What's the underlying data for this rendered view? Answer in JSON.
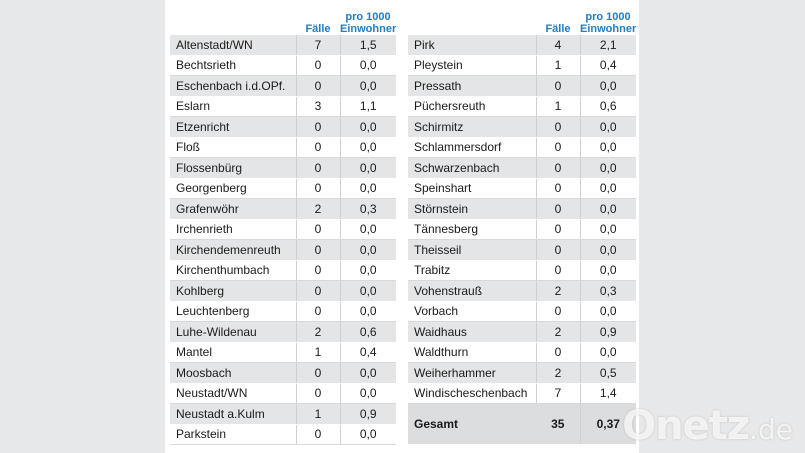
{
  "header": {
    "cases": "Fälle",
    "rate_line1": "pro 1000",
    "rate_line2": "Einwohner"
  },
  "left": [
    {
      "name": "Altenstadt/WN",
      "cases": "7",
      "rate": "1,5"
    },
    {
      "name": "Bechtsrieth",
      "cases": "0",
      "rate": "0,0"
    },
    {
      "name": "Eschenbach i.d.OPf.",
      "cases": "0",
      "rate": "0,0"
    },
    {
      "name": "Eslarn",
      "cases": "3",
      "rate": "1,1"
    },
    {
      "name": "Etzenricht",
      "cases": "0",
      "rate": "0,0"
    },
    {
      "name": "Floß",
      "cases": "0",
      "rate": "0,0"
    },
    {
      "name": "Flossenbürg",
      "cases": "0",
      "rate": "0,0"
    },
    {
      "name": "Georgenberg",
      "cases": "0",
      "rate": "0,0"
    },
    {
      "name": "Grafenwöhr",
      "cases": "2",
      "rate": "0,3"
    },
    {
      "name": "Irchenrieth",
      "cases": "0",
      "rate": "0,0"
    },
    {
      "name": "Kirchendemenreuth",
      "cases": "0",
      "rate": "0,0"
    },
    {
      "name": "Kirchenthumbach",
      "cases": "0",
      "rate": "0,0"
    },
    {
      "name": "Kohlberg",
      "cases": "0",
      "rate": "0,0"
    },
    {
      "name": "Leuchtenberg",
      "cases": "0",
      "rate": "0,0"
    },
    {
      "name": "Luhe-Wildenau",
      "cases": "2",
      "rate": "0,6"
    },
    {
      "name": "Mantel",
      "cases": "1",
      "rate": "0,4"
    },
    {
      "name": "Moosbach",
      "cases": "0",
      "rate": "0,0"
    },
    {
      "name": "Neustadt/WN",
      "cases": "0",
      "rate": "0,0"
    },
    {
      "name": "Neustadt a.Kulm",
      "cases": "1",
      "rate": "0,9"
    },
    {
      "name": "Parkstein",
      "cases": "0",
      "rate": "0,0"
    }
  ],
  "right": [
    {
      "name": "Pirk",
      "cases": "4",
      "rate": "2,1"
    },
    {
      "name": "Pleystein",
      "cases": "1",
      "rate": "0,4"
    },
    {
      "name": "Pressath",
      "cases": "0",
      "rate": "0,0"
    },
    {
      "name": "Püchersreuth",
      "cases": "1",
      "rate": "0,6"
    },
    {
      "name": "Schirmitz",
      "cases": "0",
      "rate": "0,0"
    },
    {
      "name": "Schlammersdorf",
      "cases": "0",
      "rate": "0,0"
    },
    {
      "name": "Schwarzenbach",
      "cases": "0",
      "rate": "0,0"
    },
    {
      "name": "Speinshart",
      "cases": "0",
      "rate": "0,0"
    },
    {
      "name": "Störnstein",
      "cases": "0",
      "rate": "0,0"
    },
    {
      "name": "Tännesberg",
      "cases": "0",
      "rate": "0,0"
    },
    {
      "name": "Theisseil",
      "cases": "0",
      "rate": "0,0"
    },
    {
      "name": "Trabitz",
      "cases": "0",
      "rate": "0,0"
    },
    {
      "name": "Vohenstrauß",
      "cases": "2",
      "rate": "0,3"
    },
    {
      "name": "Vorbach",
      "cases": "0",
      "rate": "0,0"
    },
    {
      "name": "Waidhaus",
      "cases": "2",
      "rate": "0,9"
    },
    {
      "name": "Waldthurn",
      "cases": "0",
      "rate": "0,0"
    },
    {
      "name": "Weiherhammer",
      "cases": "2",
      "rate": "0,5"
    },
    {
      "name": "Windischeschenbach",
      "cases": "7",
      "rate": "1,4"
    }
  ],
  "total": {
    "name": "Gesamt",
    "cases": "35",
    "rate": "0,37"
  },
  "watermark": {
    "main": "Onetz",
    "tld": ".de"
  }
}
